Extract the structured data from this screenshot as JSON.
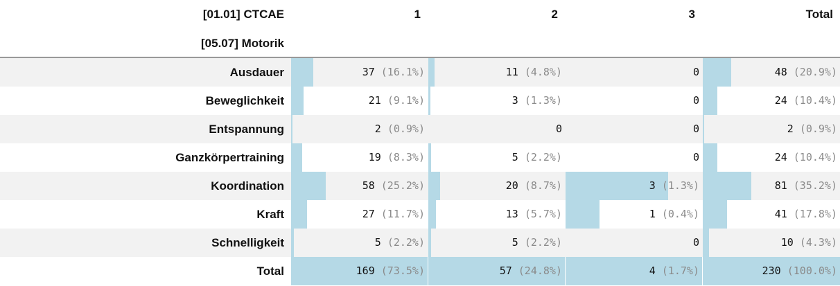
{
  "header": {
    "row_var": "[01.01] CTCAE",
    "col_var": "[05.07] Motorik",
    "columns": [
      "1",
      "2",
      "3",
      "Total"
    ]
  },
  "rows": [
    {
      "label": "Ausdauer",
      "cells": [
        {
          "n": "37",
          "pct": "(16.1%)",
          "frac": 0.161
        },
        {
          "n": "11",
          "pct": "(4.8%)",
          "frac": 0.048
        },
        {
          "n": "0",
          "pct": "",
          "frac": 0
        },
        {
          "n": "48",
          "pct": "(20.9%)",
          "frac": 0.209
        }
      ]
    },
    {
      "label": "Beweglichkeit",
      "cells": [
        {
          "n": "21",
          "pct": "(9.1%)",
          "frac": 0.091
        },
        {
          "n": "3",
          "pct": "(1.3%)",
          "frac": 0.013
        },
        {
          "n": "0",
          "pct": "",
          "frac": 0
        },
        {
          "n": "24",
          "pct": "(10.4%)",
          "frac": 0.104
        }
      ]
    },
    {
      "label": "Entspannung",
      "cells": [
        {
          "n": "2",
          "pct": "(0.9%)",
          "frac": 0.009
        },
        {
          "n": "0",
          "pct": "",
          "frac": 0
        },
        {
          "n": "0",
          "pct": "",
          "frac": 0
        },
        {
          "n": "2",
          "pct": "(0.9%)",
          "frac": 0.009
        }
      ]
    },
    {
      "label": "Ganzkörpertraining",
      "cells": [
        {
          "n": "19",
          "pct": "(8.3%)",
          "frac": 0.083
        },
        {
          "n": "5",
          "pct": "(2.2%)",
          "frac": 0.022
        },
        {
          "n": "0",
          "pct": "",
          "frac": 0
        },
        {
          "n": "24",
          "pct": "(10.4%)",
          "frac": 0.104
        }
      ]
    },
    {
      "label": "Koordination",
      "cells": [
        {
          "n": "58",
          "pct": "(25.2%)",
          "frac": 0.252
        },
        {
          "n": "20",
          "pct": "(8.7%)",
          "frac": 0.087
        },
        {
          "n": "3",
          "pct": "(1.3%)",
          "frac": 0.75
        },
        {
          "n": "81",
          "pct": "(35.2%)",
          "frac": 0.352
        }
      ]
    },
    {
      "label": "Kraft",
      "cells": [
        {
          "n": "27",
          "pct": "(11.7%)",
          "frac": 0.117
        },
        {
          "n": "13",
          "pct": "(5.7%)",
          "frac": 0.057
        },
        {
          "n": "1",
          "pct": "(0.4%)",
          "frac": 0.25
        },
        {
          "n": "41",
          "pct": "(17.8%)",
          "frac": 0.178
        }
      ]
    },
    {
      "label": "Schnelligkeit",
      "cells": [
        {
          "n": "5",
          "pct": "(2.2%)",
          "frac": 0.022
        },
        {
          "n": "5",
          "pct": "(2.2%)",
          "frac": 0.022
        },
        {
          "n": "0",
          "pct": "",
          "frac": 0
        },
        {
          "n": "10",
          "pct": "(4.3%)",
          "frac": 0.043
        }
      ]
    },
    {
      "label": "Total",
      "cells": [
        {
          "n": "169",
          "pct": "(73.5%)",
          "frac": 1
        },
        {
          "n": "57",
          "pct": "(24.8%)",
          "frac": 1
        },
        {
          "n": "4",
          "pct": "(1.7%)",
          "frac": 1
        },
        {
          "n": "230",
          "pct": "(100.0%)",
          "frac": 1
        }
      ]
    }
  ],
  "colors": {
    "bar": "#b5d9e6",
    "stripe": "#f2f2f2",
    "percent_text": "#8a8a8a"
  }
}
